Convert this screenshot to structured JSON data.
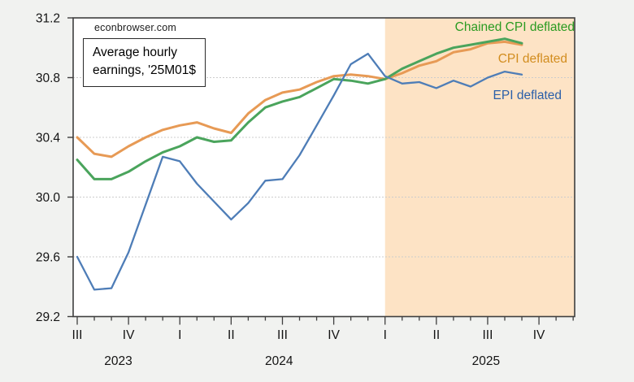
{
  "watermark": {
    "text": "econbrowser.com"
  },
  "title_box": {
    "line1": "Average hourly",
    "line2": "earnings, '25M01$"
  },
  "colors": {
    "outer_bg": "#f1f2f0",
    "plot_bg": "#ffffff",
    "forecast_shading": "#fde3c5",
    "gridline": "#cccccc",
    "axis": "#3f3f3f",
    "tick_text": "#141414"
  },
  "chart_data": {
    "type": "line",
    "title": "Average hourly earnings, '25M01$",
    "watermark": "econbrowser.com",
    "frequency": "monthly",
    "ylim": [
      29.2,
      31.2
    ],
    "yticks": [
      31.2,
      30.8,
      30.4,
      30.0,
      29.6,
      29.2
    ],
    "grid_yticks": [
      30.8,
      30.4,
      30.0,
      29.6
    ],
    "x_months": [
      "2023M07",
      "2023M08",
      "2023M09",
      "2023M10",
      "2023M11",
      "2023M12",
      "2024M01",
      "2024M02",
      "2024M03",
      "2024M04",
      "2024M05",
      "2024M06",
      "2024M07",
      "2024M08",
      "2024M09",
      "2024M10",
      "2024M11",
      "2024M12",
      "2025M01",
      "2025M02",
      "2025M03",
      "2025M04",
      "2025M05",
      "2025M06",
      "2025M07",
      "2025M08",
      "2025M09"
    ],
    "quarter_ticks": [
      {
        "month": 0,
        "label": "III"
      },
      {
        "month": 3,
        "label": "IV"
      },
      {
        "month": 6,
        "label": "I"
      },
      {
        "month": 9,
        "label": "II"
      },
      {
        "month": 12,
        "label": "III"
      },
      {
        "month": 15,
        "label": "IV"
      },
      {
        "month": 18,
        "label": "I"
      },
      {
        "month": 21,
        "label": "II"
      },
      {
        "month": 24,
        "label": "III"
      },
      {
        "month": 27,
        "label": "IV"
      }
    ],
    "year_labels": [
      {
        "month_center": 2.4,
        "label": "2023"
      },
      {
        "month_center": 11.8,
        "label": "2024"
      },
      {
        "month_center": 23.9,
        "label": "2025"
      }
    ],
    "minor_tick_month_count": 30,
    "shading": {
      "from_month": 18,
      "color": "#fde3c5"
    },
    "legend_position": "inside-top-right",
    "series": [
      {
        "name": "Chained CPI deflated",
        "line_color": "#4aa45c",
        "label_color": "#2a9b22",
        "line_width": 3,
        "z": 2,
        "values": [
          30.25,
          30.12,
          30.12,
          30.17,
          30.24,
          30.3,
          30.34,
          30.4,
          30.37,
          30.38,
          30.5,
          30.6,
          30.64,
          30.67,
          30.73,
          30.79,
          30.78,
          30.76,
          30.79,
          30.86,
          30.91,
          30.96,
          31.0,
          31.02,
          31.04,
          31.06,
          31.03
        ]
      },
      {
        "name": "CPI deflated",
        "line_color": "#e79a55",
        "label_color": "#d28d1f",
        "line_width": 3,
        "z": 1,
        "values": [
          30.4,
          30.29,
          30.27,
          30.34,
          30.4,
          30.45,
          30.48,
          30.5,
          30.46,
          30.43,
          30.56,
          30.65,
          30.7,
          30.72,
          30.77,
          30.81,
          30.82,
          30.81,
          30.79,
          30.83,
          30.88,
          30.91,
          30.97,
          30.99,
          31.03,
          31.04,
          31.02
        ]
      },
      {
        "name": "EPI deflated",
        "line_color": "#4e7db7",
        "label_color": "#2a5fa9",
        "line_width": 2.3,
        "z": 3,
        "values": [
          29.6,
          29.38,
          29.39,
          29.63,
          29.95,
          30.27,
          30.24,
          30.09,
          29.97,
          29.85,
          29.96,
          30.11,
          30.12,
          30.28,
          30.48,
          30.68,
          30.89,
          30.96,
          30.81,
          30.76,
          30.77,
          30.73,
          30.78,
          30.74,
          30.8,
          30.84,
          30.82
        ]
      }
    ]
  }
}
